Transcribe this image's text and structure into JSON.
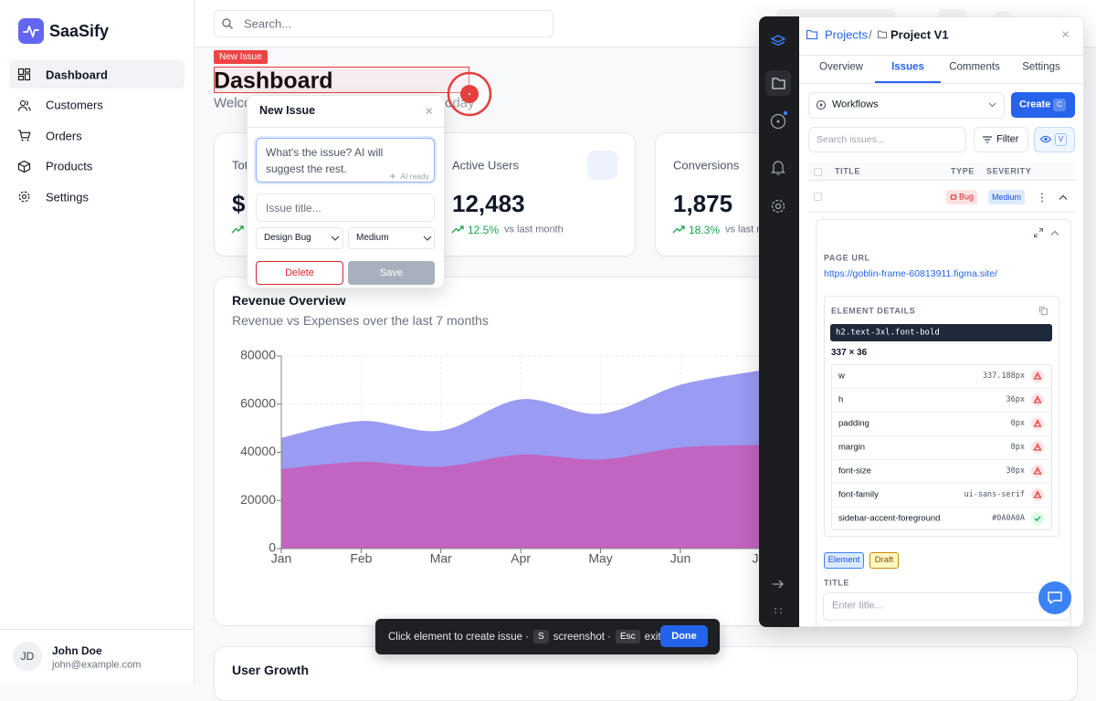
{
  "sidebar": {
    "brand": "SaaSify",
    "nav": [
      "Dashboard",
      "Customers",
      "Orders",
      "Products",
      "Settings"
    ],
    "active_nav": 0,
    "user": {
      "initials": "JD",
      "name": "John Doe",
      "email": "john@example.com"
    }
  },
  "header": {
    "search_placeholder": "Search..."
  },
  "page": {
    "badge": "New Issue",
    "title": "Dashboard",
    "subtitle_start": "Welco",
    "subtitle_end": "oday"
  },
  "stats": [
    {
      "label": "Tot",
      "value": "$"
    },
    {
      "label": "Active Users",
      "value": "12,483",
      "change": "12.5%",
      "note": "vs last month"
    },
    {
      "label": "Conversions",
      "value": "1,875",
      "change": "18.3%",
      "note": "vs last month"
    }
  ],
  "revenue_chart": {
    "type": "area",
    "title": "Revenue Overview",
    "subtitle": "Revenue vs Expenses over the last 7 months",
    "categories": [
      "Jan",
      "Feb",
      "Mar",
      "Apr",
      "May",
      "Jun",
      "Jul"
    ],
    "series": [
      {
        "color": "#9193f1",
        "values": [
          46000,
          53000,
          49000,
          62000,
          56000,
          68000,
          74000
        ]
      },
      {
        "color": "#c560bd",
        "values": [
          33000,
          36000,
          34000,
          39000,
          37000,
          42000,
          43000
        ]
      }
    ],
    "ylim": [
      0,
      80000
    ],
    "yticks": [
      0,
      20000,
      40000,
      60000,
      80000
    ],
    "grid": true
  },
  "user_growth": {
    "title": "User Growth"
  },
  "issue_popup": {
    "title": "New Issue",
    "close": "×",
    "description_placeholder": "What's the issue? AI will suggest the rest.",
    "ai_status": "AI ready",
    "title_placeholder": "Issue title...",
    "type": "Design Bug",
    "severity": "Medium",
    "delete": "Delete",
    "save": "Save"
  },
  "panel": {
    "breadcrumb": [
      "Projects",
      "Project V1"
    ],
    "separator": "/",
    "close": "×",
    "tabs": [
      "Overview",
      "Issues",
      "Comments",
      "Settings"
    ],
    "active_tab": 1,
    "workflow": "Workflows",
    "create": "Create",
    "create_key": "C",
    "search_placeholder": "Search issues...",
    "filter": "Filter",
    "view_key": "V",
    "columns": [
      "TITLE",
      "TYPE",
      "SEVERITY"
    ],
    "issue": {
      "type": "Bug",
      "severity": "Medium"
    },
    "details": {
      "page_url_label": "PAGE URL",
      "page_url": "https://goblin-frame-60813911.figma.site/",
      "element_label": "ELEMENT DETAILS",
      "selector": "h2.text-3xl.font-bold",
      "size": "337 × 36",
      "properties": [
        {
          "name": "w",
          "value": "337.188px",
          "status": "error"
        },
        {
          "name": "h",
          "value": "36px",
          "status": "error"
        },
        {
          "name": "padding",
          "value": "0px",
          "status": "error"
        },
        {
          "name": "margin",
          "value": "0px",
          "status": "error"
        },
        {
          "name": "font-size",
          "value": "30px",
          "status": "error"
        },
        {
          "name": "font-family",
          "value": "ui-sans-serif",
          "status": "error"
        },
        {
          "name": "sidebar-accent-foreground",
          "value": "#0A0A0A",
          "status": "ok"
        }
      ],
      "tags": [
        "Element",
        "Draft"
      ],
      "title_label": "TITLE",
      "title_placeholder": "Enter title..."
    }
  },
  "toolbar": {
    "hint": "Click element to create issue ·",
    "screenshot_key": "S",
    "screenshot": "screenshot ·",
    "exit_key": "Esc",
    "exit": "exit",
    "done": "Done"
  }
}
